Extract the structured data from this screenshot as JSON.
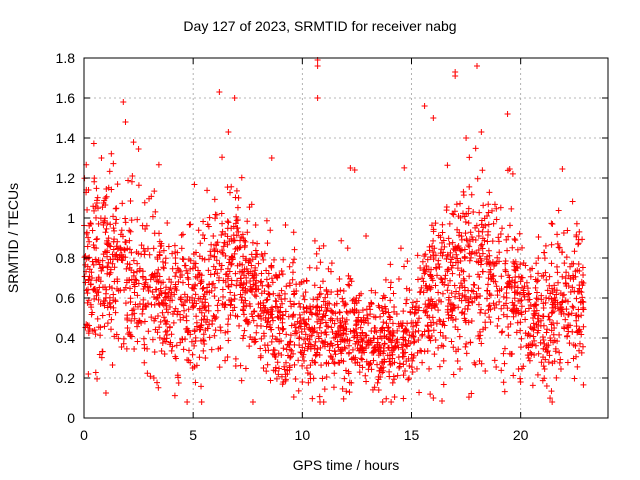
{
  "chart_data": {
    "type": "scatter",
    "title": "Day 127 of 2023, SRMTID for receiver nabg",
    "xlabel": "GPS time / hours",
    "ylabel": "SRMTID / TECUs",
    "xlim": [
      0,
      24
    ],
    "ylim": [
      0,
      1.8
    ],
    "xticks": [
      "0",
      "5",
      "10",
      "15",
      "20"
    ],
    "yticks": [
      "0",
      "0.2",
      "0.4",
      "0.6",
      "0.8",
      "1",
      "1.2",
      "1.4",
      "1.6",
      "1.8"
    ],
    "grid": true,
    "marker": "+",
    "series_color": "#ff0000",
    "x_range_of_data": [
      0,
      22.9
    ],
    "trend_points": [
      {
        "x": 0.0,
        "y": 0.78
      },
      {
        "x": 1.0,
        "y": 0.72
      },
      {
        "x": 2.0,
        "y": 0.68
      },
      {
        "x": 3.0,
        "y": 0.62
      },
      {
        "x": 4.0,
        "y": 0.58
      },
      {
        "x": 5.0,
        "y": 0.52
      },
      {
        "x": 6.0,
        "y": 0.66
      },
      {
        "x": 7.0,
        "y": 0.72
      },
      {
        "x": 8.0,
        "y": 0.55
      },
      {
        "x": 9.0,
        "y": 0.48
      },
      {
        "x": 10.0,
        "y": 0.42
      },
      {
        "x": 11.0,
        "y": 0.46
      },
      {
        "x": 12.0,
        "y": 0.4
      },
      {
        "x": 13.0,
        "y": 0.38
      },
      {
        "x": 14.0,
        "y": 0.36
      },
      {
        "x": 15.0,
        "y": 0.42
      },
      {
        "x": 16.0,
        "y": 0.62
      },
      {
        "x": 17.0,
        "y": 0.7
      },
      {
        "x": 18.0,
        "y": 0.74
      },
      {
        "x": 19.0,
        "y": 0.66
      },
      {
        "x": 20.0,
        "y": 0.55
      },
      {
        "x": 21.0,
        "y": 0.45
      },
      {
        "x": 22.0,
        "y": 0.62
      },
      {
        "x": 22.9,
        "y": 0.52
      }
    ],
    "notable_points": [
      {
        "x": 10.7,
        "y": 1.79
      },
      {
        "x": 10.7,
        "y": 1.76
      },
      {
        "x": 18.0,
        "y": 1.76
      },
      {
        "x": 17.0,
        "y": 1.73
      },
      {
        "x": 17.0,
        "y": 1.71
      },
      {
        "x": 6.2,
        "y": 1.63
      },
      {
        "x": 6.9,
        "y": 1.6
      },
      {
        "x": 1.8,
        "y": 1.58
      },
      {
        "x": 10.7,
        "y": 1.6
      },
      {
        "x": 15.6,
        "y": 1.56
      },
      {
        "x": 19.4,
        "y": 1.52
      },
      {
        "x": 1.9,
        "y": 1.48
      },
      {
        "x": 16.0,
        "y": 1.5
      },
      {
        "x": 17.5,
        "y": 1.4
      },
      {
        "x": 18.2,
        "y": 1.43
      },
      {
        "x": 12.2,
        "y": 1.25
      },
      {
        "x": 12.4,
        "y": 1.24
      },
      {
        "x": 8.6,
        "y": 1.3
      },
      {
        "x": 0.8,
        "y": 1.3
      },
      {
        "x": 14.9,
        "y": 0.26
      },
      {
        "x": 16.0,
        "y": 0.1
      },
      {
        "x": 3.2,
        "y": 0.2
      },
      {
        "x": 10.0,
        "y": 0.18
      },
      {
        "x": 13.5,
        "y": 0.14
      },
      {
        "x": 21.2,
        "y": 0.16
      },
      {
        "x": 0.2,
        "y": 0.22
      }
    ],
    "note": "Dense scatter of several thousand '+' markers; values shown are representative trend levels and notable outliers read from the axes."
  }
}
